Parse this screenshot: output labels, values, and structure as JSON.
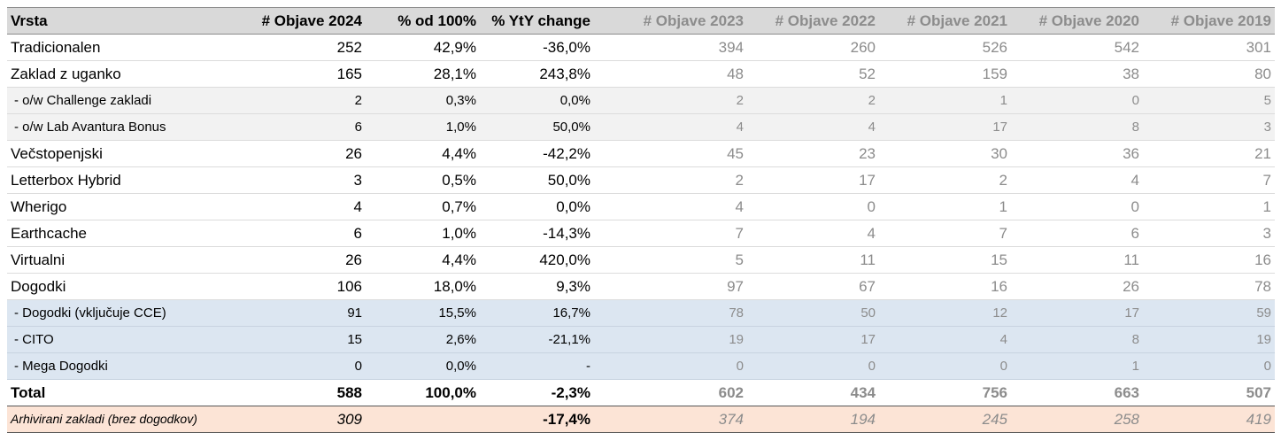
{
  "headers": [
    "Vrsta",
    "# Objave 2024",
    "% od 100%",
    "% YtY change",
    "# Objave 2023",
    "# Objave 2022",
    "# Objave 2021",
    "# Objave 2020",
    "# Objave 2019"
  ],
  "rows": [
    {
      "label": "Tradicionalen",
      "c2024": "252",
      "pct": "42,9%",
      "yty": "-36,0%",
      "c2023": "394",
      "c2022": "260",
      "c2021": "526",
      "c2020": "542",
      "c2019": "301"
    },
    {
      "label": "Zaklad z uganko",
      "c2024": "165",
      "pct": "28,1%",
      "yty": "243,8%",
      "c2023": "48",
      "c2022": "52",
      "c2021": "159",
      "c2020": "38",
      "c2019": "80"
    },
    {
      "label": " - o/w Challenge zakladi",
      "c2024": "2",
      "pct": "0,3%",
      "yty": "0,0%",
      "c2023": "2",
      "c2022": "2",
      "c2021": "1",
      "c2020": "0",
      "c2019": "5"
    },
    {
      "label": " - o/w Lab Avantura Bonus",
      "c2024": "6",
      "pct": "1,0%",
      "yty": "50,0%",
      "c2023": "4",
      "c2022": "4",
      "c2021": "17",
      "c2020": "8",
      "c2019": "3"
    },
    {
      "label": "Večstopenjski",
      "c2024": "26",
      "pct": "4,4%",
      "yty": "-42,2%",
      "c2023": "45",
      "c2022": "23",
      "c2021": "30",
      "c2020": "36",
      "c2019": "21"
    },
    {
      "label": "Letterbox Hybrid",
      "c2024": "3",
      "pct": "0,5%",
      "yty": "50,0%",
      "c2023": "2",
      "c2022": "17",
      "c2021": "2",
      "c2020": "4",
      "c2019": "7"
    },
    {
      "label": "Wherigo",
      "c2024": "4",
      "pct": "0,7%",
      "yty": "0,0%",
      "c2023": "4",
      "c2022": "0",
      "c2021": "1",
      "c2020": "0",
      "c2019": "1"
    },
    {
      "label": "Earthcache",
      "c2024": "6",
      "pct": "1,0%",
      "yty": "-14,3%",
      "c2023": "7",
      "c2022": "4",
      "c2021": "7",
      "c2020": "6",
      "c2019": "3"
    },
    {
      "label": "Virtualni",
      "c2024": "26",
      "pct": "4,4%",
      "yty": "420,0%",
      "c2023": "5",
      "c2022": "11",
      "c2021": "15",
      "c2020": "11",
      "c2019": "16"
    },
    {
      "label": "Dogodki",
      "c2024": "106",
      "pct": "18,0%",
      "yty": "9,3%",
      "c2023": "97",
      "c2022": "67",
      "c2021": "16",
      "c2020": "26",
      "c2019": "78"
    },
    {
      "label": " - Dogodki (vključuje CCE)",
      "c2024": "91",
      "pct": "15,5%",
      "yty": "16,7%",
      "c2023": "78",
      "c2022": "50",
      "c2021": "12",
      "c2020": "17",
      "c2019": "59"
    },
    {
      "label": " - CITO",
      "c2024": "15",
      "pct": "2,6%",
      "yty": "-21,1%",
      "c2023": "19",
      "c2022": "17",
      "c2021": "4",
      "c2020": "8",
      "c2019": "19"
    },
    {
      "label": " - Mega Dogodki",
      "c2024": "0",
      "pct": "0,0%",
      "yty": "-",
      "c2023": "0",
      "c2022": "0",
      "c2021": "0",
      "c2020": "1",
      "c2019": "0"
    }
  ],
  "total": {
    "label": "Total",
    "c2024": "588",
    "pct": "100,0%",
    "yty": "-2,3%",
    "c2023": "602",
    "c2022": "434",
    "c2021": "756",
    "c2020": "663",
    "c2019": "507"
  },
  "archive": {
    "label": "Arhivirani zakladi (brez dogodkov)",
    "c2024": "309",
    "pct": "",
    "yty": "-17,4%",
    "c2023": "374",
    "c2022": "194",
    "c2021": "245",
    "c2020": "258",
    "c2019": "419"
  }
}
